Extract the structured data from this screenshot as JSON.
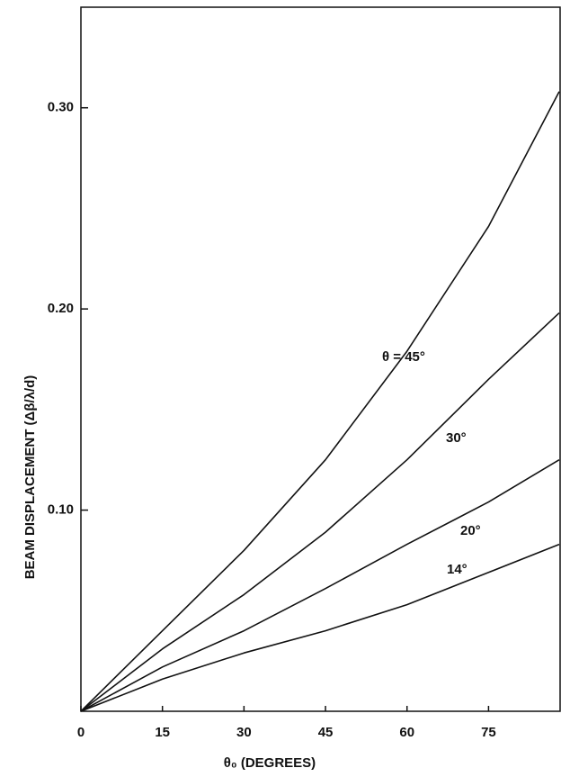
{
  "chart_data": {
    "type": "line",
    "x_label": "θ₀ (DEGREES)",
    "y_label": "BEAM DISPLACEMENT (Δβ/λ/d)",
    "x": [
      0,
      15,
      30,
      45,
      60,
      75,
      88
    ],
    "series": [
      {
        "name": "θ = 45°",
        "color": "#111111",
        "values": [
          0,
          0.04,
          0.08,
          0.125,
          0.179,
          0.241,
          0.308
        ]
      },
      {
        "name": "30°",
        "color": "#111111",
        "values": [
          0,
          0.031,
          0.058,
          0.089,
          0.125,
          0.165,
          0.198
        ]
      },
      {
        "name": "20°",
        "color": "#111111",
        "values": [
          0,
          0.022,
          0.04,
          0.061,
          0.083,
          0.104,
          0.125
        ]
      },
      {
        "name": "14°",
        "color": "#111111",
        "values": [
          0,
          0.016,
          0.029,
          0.04,
          0.053,
          0.069,
          0.083
        ]
      }
    ],
    "xlim": [
      0,
      88
    ],
    "xticks": [
      0,
      15,
      30,
      45,
      60,
      75
    ],
    "ylim": [
      0,
      0.35
    ],
    "yticks": [
      {
        "value": 0.1,
        "label": "0.10"
      },
      {
        "value": 0.2,
        "label": "0.20"
      },
      {
        "value": 0.3,
        "label": "0.30"
      }
    ],
    "grid": false
  }
}
